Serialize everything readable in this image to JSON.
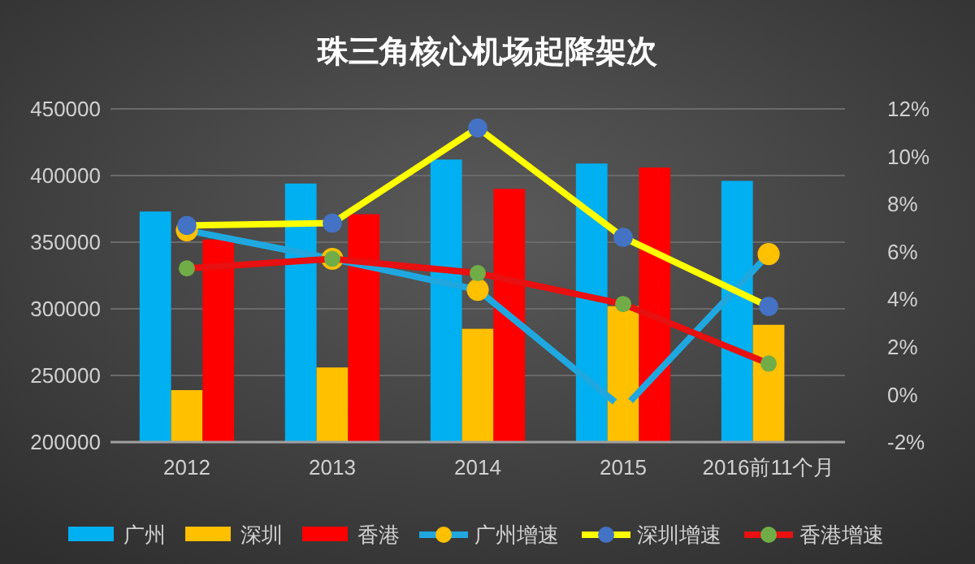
{
  "chart_data": {
    "type": "bar",
    "title": "珠三角核心机场起降架次",
    "categories": [
      "2012",
      "2013",
      "2014",
      "2015",
      "2016前11个月"
    ],
    "ylim": [
      200000,
      450000
    ],
    "yticks": [
      200000,
      250000,
      300000,
      350000,
      400000,
      450000
    ],
    "y2lim": [
      -2,
      12
    ],
    "y2ticks": [
      {
        "value": -2,
        "label": "-2%"
      },
      {
        "value": 0,
        "label": "0%"
      },
      {
        "value": 2,
        "label": "2%"
      },
      {
        "value": 4,
        "label": "4%"
      },
      {
        "value": 6,
        "label": "6%"
      },
      {
        "value": 8,
        "label": "8%"
      },
      {
        "value": 10,
        "label": "10%"
      },
      {
        "value": 12,
        "label": "12%"
      }
    ],
    "grid": "y",
    "legend": "bottom",
    "marker": "circle",
    "series": [
      {
        "name": "广州",
        "color": "#00b0f0",
        "values": [
          373000,
          394000,
          412000,
          409000,
          396000
        ]
      },
      {
        "name": "深圳",
        "color": "#ffc000",
        "values": [
          239000,
          256000,
          285000,
          302000,
          288000
        ]
      },
      {
        "name": "香港",
        "color": "#ff0000",
        "values": [
          352000,
          371000,
          390000,
          406000,
          null
        ]
      },
      {
        "name": "广州增速",
        "type": "line",
        "axis": "y2",
        "color": "#1fa8e0",
        "colors": [
          "#ffc000",
          "#ffc000",
          "#ffc000",
          "#ffc000",
          "#ffc000"
        ],
        "values": [
          6.9,
          5.7,
          4.4,
          -0.6,
          5.9
        ]
      },
      {
        "name": "深圳增速",
        "type": "line",
        "axis": "y2",
        "color": "#ffff00",
        "colors": [
          "#4472c4",
          "#4472c4",
          "#4472c4",
          "#4472c4",
          "#4472c4"
        ],
        "values": [
          7.1,
          7.2,
          11.2,
          6.6,
          3.7
        ]
      },
      {
        "name": "香港增速",
        "type": "line",
        "axis": "y2",
        "color": "#e81010",
        "colors": [
          "#70ad47",
          "#70ad47",
          "#70ad47",
          "#70ad47",
          "#70ad47"
        ],
        "values": [
          5.3,
          5.7,
          5.1,
          3.8,
          1.3
        ]
      }
    ]
  }
}
